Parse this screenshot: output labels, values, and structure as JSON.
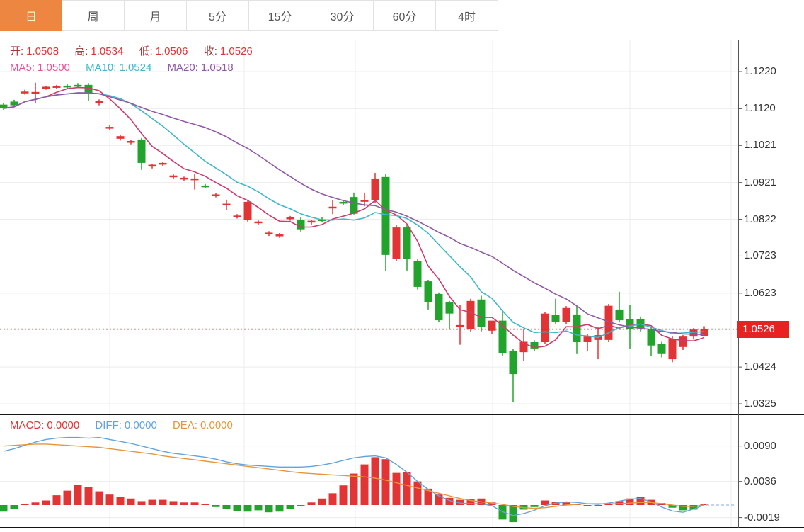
{
  "tabs": {
    "items": [
      {
        "label": "日",
        "active": true
      },
      {
        "label": "周",
        "active": false
      },
      {
        "label": "月",
        "active": false
      },
      {
        "label": "5分",
        "active": false
      },
      {
        "label": "15分",
        "active": false
      },
      {
        "label": "30分",
        "active": false
      },
      {
        "label": "60分",
        "active": false
      },
      {
        "label": "4时",
        "active": false
      }
    ]
  },
  "info": {
    "open_label": "开:",
    "open": "1.0508",
    "high_label": "高:",
    "high": "1.0534",
    "low_label": "低:",
    "low": "1.0506",
    "close_label": "收:",
    "close": "1.0526"
  },
  "ma_legend": {
    "ma5_label": "MA5:",
    "ma5": "1.0500",
    "ma10_label": "MA10:",
    "ma10": "1.0524",
    "ma20_label": "MA20:",
    "ma20": "1.0518"
  },
  "macd_legend": {
    "macd_label": "MACD:",
    "macd": "0.0000",
    "diff_label": "DIFF:",
    "diff": "0.0000",
    "dea_label": "DEA:",
    "dea": "0.0000"
  },
  "axis": {
    "current_price": "1.0526"
  },
  "colors": {
    "up": "#e23434",
    "down": "#22a42c",
    "ma5_line": "#cc3b6b",
    "ma10_line": "#41b7c9",
    "ma20_line": "#9059a5",
    "diff_line": "#62a4dc",
    "dea_line": "#e6953f",
    "tab_active": "#ed8640",
    "grid": "#ececec",
    "axis_text": "#333333",
    "price_line": "#cc2222",
    "price_tag_bg": "#e62222"
  },
  "chart_data": {
    "type": "candlestick",
    "timeframe": "daily",
    "legend_position": "top-left",
    "grid": true,
    "panels": [
      {
        "name": "price",
        "y_ticks": [
          "1.1220",
          "1.1120",
          "1.1021",
          "1.0921",
          "1.0822",
          "1.0723",
          "1.0623",
          "1.0424",
          "1.0325"
        ],
        "ylim": [
          1.0325,
          1.122
        ],
        "current_price": 1.0526,
        "indicators": {
          "ma5": 1.05,
          "ma10": 1.0524,
          "ma20": 1.0518
        },
        "candles": [
          [
            1.1131,
            1.1136,
            1.1117,
            1.1121
          ],
          [
            1.1139,
            1.1144,
            1.1124,
            1.1129
          ],
          [
            1.1163,
            1.1171,
            1.1158,
            1.1166
          ],
          [
            1.1162,
            1.119,
            1.1134,
            1.1165
          ],
          [
            1.1176,
            1.1182,
            1.1171,
            1.1179
          ],
          [
            1.1178,
            1.1184,
            1.1174,
            1.1181
          ],
          [
            1.1182,
            1.1186,
            1.1175,
            1.1178
          ],
          [
            1.1184,
            1.1189,
            1.1178,
            1.1181
          ],
          [
            1.1184,
            1.1189,
            1.114,
            1.1161
          ],
          [
            1.1134,
            1.1145,
            1.1129,
            1.1141
          ],
          [
            1.1068,
            1.1075,
            1.1062,
            1.1071
          ],
          [
            1.1039,
            1.105,
            1.1034,
            1.1046
          ],
          [
            1.1029,
            1.1036,
            1.1024,
            1.1033
          ],
          [
            1.1037,
            1.1041,
            1.0955,
            1.0974
          ],
          [
            1.0964,
            1.0972,
            1.0959,
            1.0969
          ],
          [
            1.097,
            1.0977,
            1.0965,
            1.0974
          ],
          [
            1.0936,
            1.0943,
            1.0931,
            1.094
          ],
          [
            1.0931,
            1.0937,
            1.0926,
            1.0934
          ],
          [
            1.0928,
            1.0944,
            1.0902,
            1.0932
          ],
          [
            1.0913,
            1.0917,
            1.0906,
            1.091
          ],
          [
            1.0886,
            1.0892,
            1.0881,
            1.0889
          ],
          [
            1.0861,
            1.0875,
            1.0847,
            1.0864
          ],
          [
            1.0829,
            1.0836,
            1.0824,
            1.0832
          ],
          [
            1.0821,
            1.0872,
            1.0816,
            1.0869
          ],
          [
            1.0813,
            1.0819,
            1.0808,
            1.0816
          ],
          [
            1.0783,
            1.079,
            1.0777,
            1.0786
          ],
          [
            1.0778,
            1.0785,
            1.0772,
            1.0781
          ],
          [
            1.0824,
            1.0831,
            1.0818,
            1.0827
          ],
          [
            1.0821,
            1.0827,
            1.0789,
            1.0795
          ],
          [
            1.0814,
            1.0821,
            1.0808,
            1.0818
          ],
          [
            1.0822,
            1.0827,
            1.0814,
            1.0818
          ],
          [
            1.0852,
            1.0873,
            1.0836,
            1.0856
          ],
          [
            1.0869,
            1.0874,
            1.0861,
            1.0865
          ],
          [
            1.0882,
            1.0894,
            1.0835,
            1.0837
          ],
          [
            1.087,
            1.0894,
            1.0857,
            1.0874
          ],
          [
            1.0873,
            1.0947,
            1.0867,
            1.0932
          ],
          [
            1.0936,
            1.0944,
            1.0682,
            1.0726
          ],
          [
            1.0716,
            1.0806,
            1.071,
            1.08
          ],
          [
            1.08,
            1.0806,
            1.0684,
            1.0716
          ],
          [
            1.071,
            1.0714,
            1.0633,
            1.064
          ],
          [
            1.0655,
            1.0659,
            1.0579,
            1.0598
          ],
          [
            1.0621,
            1.0625,
            1.0546,
            1.055
          ],
          [
            1.0598,
            1.0602,
            1.0526,
            1.0568
          ],
          [
            1.0531,
            1.0592,
            1.0484,
            1.0537
          ],
          [
            1.0526,
            1.0608,
            1.052,
            1.0602
          ],
          [
            1.0606,
            1.0616,
            1.052,
            1.0532
          ],
          [
            1.0522,
            1.0534,
            1.0512,
            1.0549
          ],
          [
            1.0549,
            1.0577,
            1.0455,
            1.0462
          ],
          [
            1.0468,
            1.0473,
            1.033,
            1.0405
          ],
          [
            1.0464,
            1.0526,
            1.0441,
            1.0492
          ],
          [
            1.0491,
            1.0496,
            1.0466,
            1.0474
          ],
          [
            1.0491,
            1.0573,
            1.0486,
            1.0568
          ],
          [
            1.0564,
            1.0608,
            1.054,
            1.0546
          ],
          [
            1.0546,
            1.0588,
            1.054,
            1.0583
          ],
          [
            1.0564,
            1.0589,
            1.0459,
            1.0491
          ],
          [
            1.0491,
            1.0512,
            1.0466,
            1.0506
          ],
          [
            1.0497,
            1.0533,
            1.0445,
            1.051
          ],
          [
            1.0497,
            1.0594,
            1.0491,
            1.0589
          ],
          [
            1.0579,
            1.0627,
            1.0544,
            1.055
          ],
          [
            1.0554,
            1.0592,
            1.0474,
            1.0527
          ],
          [
            1.0554,
            1.056,
            1.052,
            1.0529
          ],
          [
            1.0526,
            1.0532,
            1.0453,
            1.0482
          ],
          [
            1.0487,
            1.0492,
            1.045,
            1.0459
          ],
          [
            1.0445,
            1.0506,
            1.0437,
            1.05
          ],
          [
            1.0478,
            1.051,
            1.047,
            1.0506
          ],
          [
            1.0506,
            1.0529,
            1.0498,
            1.0525
          ],
          [
            1.0508,
            1.0534,
            1.0506,
            1.0526
          ]
        ]
      },
      {
        "name": "macd",
        "y_ticks": [
          "0.0090",
          "0.0036",
          "-0.0019"
        ],
        "hist": [
          -0.001,
          -0.0006,
          0.0002,
          0.0004,
          0.0007,
          0.0015,
          0.0022,
          0.0031,
          0.0028,
          0.0021,
          0.0016,
          0.0013,
          0.001,
          0.0006,
          0.0008,
          0.0008,
          0.0006,
          0.0004,
          0.0004,
          0.0002,
          -0.0003,
          -0.0006,
          -0.0009,
          -0.001,
          -0.0008,
          -0.0011,
          -0.001,
          -0.0006,
          -0.0002,
          0.0004,
          0.001,
          0.0018,
          0.003,
          0.0048,
          0.0062,
          0.0073,
          0.007,
          0.0049,
          0.005,
          0.0036,
          0.0025,
          0.0016,
          0.0011,
          0.0008,
          0.0009,
          0.001,
          0.0004,
          -0.0022,
          -0.0026,
          -0.0007,
          -0.0003,
          0.0007,
          0.0005,
          0.0004,
          0.0002,
          -0.0001,
          -0.0002,
          0.0001,
          0.0006,
          0.001,
          0.0013,
          0.0008,
          0.0003,
          -0.0004,
          -0.0008,
          -0.0007,
          0.0
        ],
        "diff": [
          0.0082,
          0.0086,
          0.0091,
          0.0096,
          0.01,
          0.0102,
          0.0103,
          0.0103,
          0.0102,
          0.0103,
          0.01,
          0.0097,
          0.0094,
          0.009,
          0.0086,
          0.0082,
          0.0079,
          0.0077,
          0.0075,
          0.0073,
          0.007,
          0.0066,
          0.0063,
          0.0061,
          0.006,
          0.0059,
          0.0058,
          0.0058,
          0.0058,
          0.0059,
          0.0061,
          0.0064,
          0.0068,
          0.0072,
          0.0074,
          0.0075,
          0.0072,
          0.0062,
          0.005,
          0.0036,
          0.0024,
          0.0014,
          0.0007,
          0.0003,
          0.0002,
          0.0002,
          -0.0001,
          -0.001,
          -0.0016,
          -0.0013,
          -0.0008,
          -0.0001,
          0.0003,
          0.0005,
          0.0004,
          0.0002,
          0.0001,
          0.0003,
          0.0006,
          0.0009,
          0.001,
          0.0005,
          -0.0003,
          -0.0009,
          -0.0011,
          -0.0006,
          0.0
        ],
        "dea": [
          0.009,
          0.0091,
          0.0092,
          0.0093,
          0.0093,
          0.0092,
          0.0091,
          0.009,
          0.0089,
          0.0088,
          0.0086,
          0.0084,
          0.0082,
          0.008,
          0.0078,
          0.0075,
          0.0073,
          0.0071,
          0.0069,
          0.0067,
          0.0065,
          0.0063,
          0.0061,
          0.0059,
          0.0057,
          0.0055,
          0.0053,
          0.0051,
          0.0049,
          0.0048,
          0.0047,
          0.0046,
          0.0045,
          0.0044,
          0.0043,
          0.0041,
          0.0038,
          0.0034,
          0.003,
          0.0026,
          0.0022,
          0.0018,
          0.0014,
          0.001,
          0.0007,
          0.0005,
          0.0003,
          0.0001,
          -0.0002,
          -0.0004,
          -0.0005,
          -0.0004,
          -0.0002,
          0.0,
          0.0001,
          0.0002,
          0.0002,
          0.0002,
          0.0002,
          0.0003,
          0.0004,
          0.0004,
          0.0002,
          0.0,
          -0.0002,
          -0.0002,
          0.0
        ]
      }
    ]
  }
}
